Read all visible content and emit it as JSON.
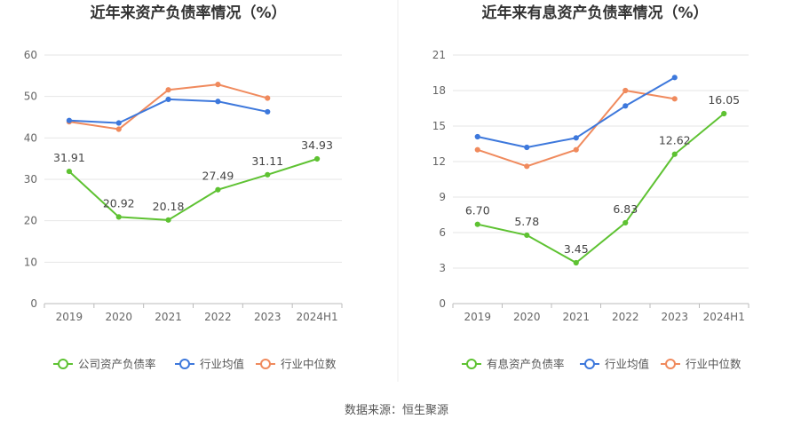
{
  "source": "数据来源：恒生聚源",
  "chart_data": [
    {
      "type": "line",
      "title": "近年来资产负债率情况（%）",
      "categories": [
        "2019",
        "2020",
        "2021",
        "2022",
        "2023",
        "2024H1"
      ],
      "ylim": [
        0,
        60
      ],
      "yticks": [
        0,
        10,
        20,
        30,
        40,
        50,
        60
      ],
      "grid": true,
      "legend_position": "bottom",
      "series": [
        {
          "name": "公司资产负债率",
          "color": "#5ec232",
          "values": [
            31.91,
            20.92,
            20.18,
            27.49,
            31.11,
            34.93
          ],
          "labels": [
            "31.91",
            "20.92",
            "20.18",
            "27.49",
            "31.11",
            "34.93"
          ]
        },
        {
          "name": "行业均值",
          "color": "#3d78dc",
          "values": [
            44.2,
            43.6,
            49.3,
            48.8,
            46.3,
            null
          ]
        },
        {
          "name": "行业中位数",
          "color": "#f08a5d",
          "values": [
            43.9,
            42.1,
            51.6,
            52.9,
            49.6,
            null
          ]
        }
      ]
    },
    {
      "type": "line",
      "title": "近年来有息资产负债率情况（%）",
      "categories": [
        "2019",
        "2020",
        "2021",
        "2022",
        "2023",
        "2024H1"
      ],
      "ylim": [
        0,
        21
      ],
      "yticks": [
        0,
        3,
        6,
        9,
        12,
        15,
        18,
        21
      ],
      "grid": true,
      "legend_position": "bottom",
      "series": [
        {
          "name": "有息资产负债率",
          "color": "#5ec232",
          "values": [
            6.7,
            5.78,
            3.45,
            6.83,
            12.62,
            16.05
          ],
          "labels": [
            "6.70",
            "5.78",
            "3.45",
            "6.83",
            "12.62",
            "16.05"
          ]
        },
        {
          "name": "行业均值",
          "color": "#3d78dc",
          "values": [
            14.1,
            13.2,
            14.0,
            16.7,
            19.1,
            null
          ]
        },
        {
          "name": "行业中位数",
          "color": "#f08a5d",
          "values": [
            13.0,
            11.6,
            13.0,
            18.0,
            17.3,
            null
          ]
        }
      ]
    }
  ]
}
